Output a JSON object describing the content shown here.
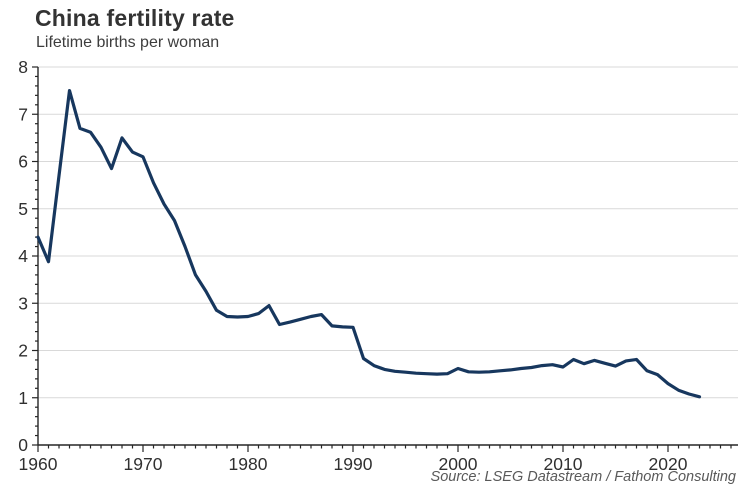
{
  "header": {
    "title": "China fertility rate",
    "subtitle": "Lifetime births per woman"
  },
  "footer": {
    "source": "Source: LSEG Datastream / Fathom Consulting"
  },
  "chart_data": {
    "type": "line",
    "title": "China fertility rate",
    "subtitle": "Lifetime births per woman",
    "ylabel": "Lifetime births per woman",
    "xlabel": "",
    "xlim": [
      1960,
      2026.6
    ],
    "ylim": [
      0,
      8
    ],
    "y_major_ticks": [
      0,
      1,
      2,
      3,
      4,
      5,
      6,
      7,
      8
    ],
    "y_minor_step": 0.2,
    "x_major_ticks": [
      1960,
      1970,
      1980,
      1990,
      2000,
      2010,
      2020
    ],
    "x_minor_step": 1,
    "grid": "horizontal",
    "legend": "none",
    "line_color": "#17375e",
    "grid_color": "#d9d9d9",
    "axis_color": "#262626",
    "tick_label_color": "#303030",
    "series": [
      {
        "name": "China fertility rate",
        "x": [
          1960,
          1961,
          1962,
          1963,
          1964,
          1965,
          1966,
          1967,
          1968,
          1969,
          1970,
          1971,
          1972,
          1973,
          1974,
          1975,
          1976,
          1977,
          1978,
          1979,
          1980,
          1981,
          1982,
          1983,
          1984,
          1985,
          1986,
          1987,
          1988,
          1989,
          1990,
          1991,
          1992,
          1993,
          1994,
          1995,
          1996,
          1997,
          1998,
          1999,
          2000,
          2001,
          2002,
          2003,
          2004,
          2005,
          2006,
          2007,
          2008,
          2009,
          2010,
          2011,
          2012,
          2013,
          2014,
          2015,
          2016,
          2017,
          2018,
          2019,
          2020,
          2021,
          2022,
          2023
        ],
        "values": [
          4.4,
          3.88,
          5.7,
          7.5,
          6.7,
          6.62,
          6.3,
          5.85,
          6.5,
          6.2,
          6.1,
          5.55,
          5.1,
          4.75,
          4.2,
          3.6,
          3.25,
          2.85,
          2.72,
          2.71,
          2.72,
          2.78,
          2.95,
          2.55,
          2.6,
          2.66,
          2.72,
          2.76,
          2.52,
          2.5,
          2.49,
          1.83,
          1.68,
          1.6,
          1.56,
          1.54,
          1.52,
          1.51,
          1.5,
          1.51,
          1.62,
          1.55,
          1.54,
          1.55,
          1.57,
          1.59,
          1.62,
          1.64,
          1.68,
          1.7,
          1.65,
          1.81,
          1.72,
          1.79,
          1.73,
          1.67,
          1.78,
          1.81,
          1.57,
          1.49,
          1.3,
          1.16,
          1.08,
          1.02
        ]
      }
    ]
  }
}
